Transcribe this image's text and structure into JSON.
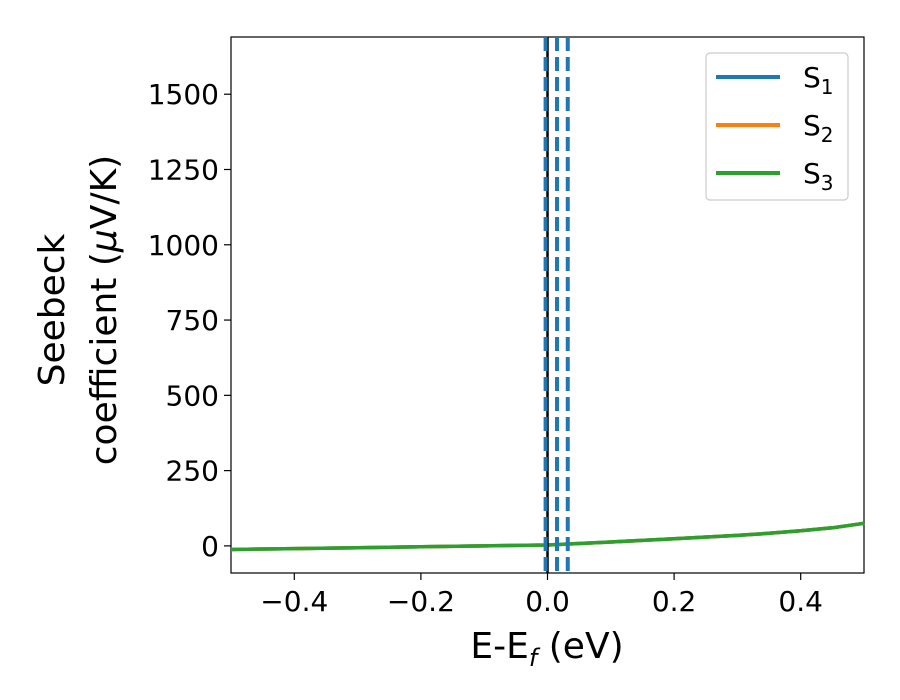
{
  "chart_data": {
    "type": "line",
    "xlabel": {
      "main": "E-E",
      "sub": "f",
      "unit": " (eV)"
    },
    "ylabel": {
      "line1": "Seebeck",
      "line2_text": "coefficient  (",
      "line2_mu": "μ",
      "line2_unit": "V/K)"
    },
    "xlim": [
      -0.5,
      0.5
    ],
    "ylim": [
      -90,
      1690
    ],
    "x_ticks": [
      -0.4,
      -0.2,
      0.0,
      0.2,
      0.4
    ],
    "x_tick_labels": [
      "−0.4",
      "−0.2",
      "0.0",
      "0.2",
      "0.4"
    ],
    "y_ticks": [
      0,
      250,
      500,
      750,
      1000,
      1250,
      1500
    ],
    "y_tick_labels": [
      "0",
      "250",
      "500",
      "750",
      "1000",
      "1250",
      "1500"
    ],
    "grid": false,
    "legend_placement": "top-right",
    "series": [
      {
        "name": "S",
        "sub": "1",
        "color": "#1f77b4",
        "x": [
          -0.5,
          -0.4,
          -0.3,
          -0.2,
          -0.1,
          0.0,
          0.1,
          0.2,
          0.3,
          0.35,
          0.4,
          0.45,
          0.5
        ],
        "y": [
          -12,
          -9,
          -6,
          -3,
          0,
          3,
          13,
          24,
          35,
          42,
          50,
          60,
          75
        ]
      },
      {
        "name": "S",
        "sub": "2",
        "color": "#ff7f0e",
        "x": [
          -0.5,
          -0.4,
          -0.3,
          -0.2,
          -0.1,
          0.0,
          0.1,
          0.2,
          0.3,
          0.35,
          0.4,
          0.45,
          0.5
        ],
        "y": [
          -12,
          -9,
          -6,
          -3,
          0,
          3,
          13,
          24,
          35,
          42,
          50,
          60,
          75
        ]
      },
      {
        "name": "S",
        "sub": "3",
        "color": "#2ca02c",
        "x": [
          -0.5,
          -0.4,
          -0.3,
          -0.2,
          -0.1,
          0.0,
          0.1,
          0.2,
          0.3,
          0.35,
          0.4,
          0.45,
          0.5
        ],
        "y": [
          -12,
          -9,
          -6,
          -3,
          0,
          3,
          13,
          24,
          35,
          42,
          50,
          60,
          75
        ]
      }
    ],
    "vertical_lines": [
      {
        "x": 0.0,
        "color": "#000000",
        "style": "solid"
      },
      {
        "x": -0.003,
        "color": "#1f77b4",
        "style": "dashed"
      },
      {
        "x": 0.015,
        "color": "#1f77b4",
        "style": "dashed"
      },
      {
        "x": 0.032,
        "color": "#1f77b4",
        "style": "dashed"
      }
    ]
  }
}
